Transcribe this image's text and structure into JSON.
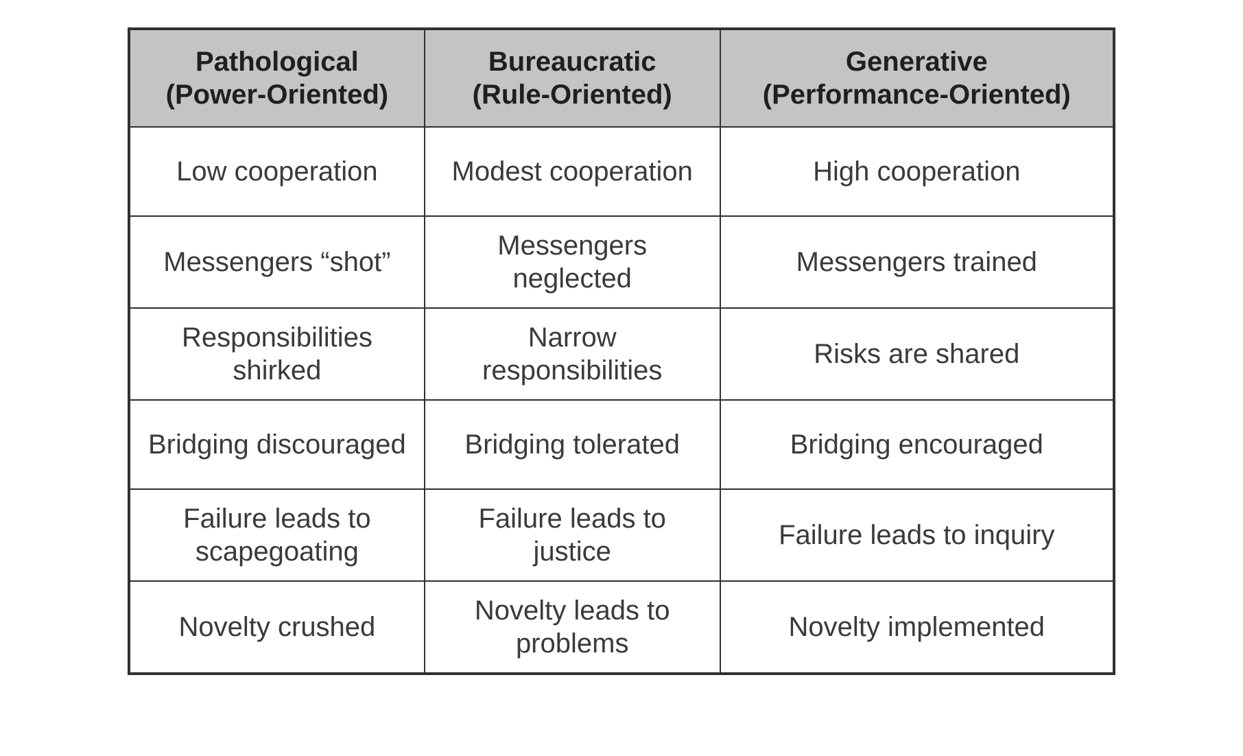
{
  "table": {
    "type": "table",
    "background_color": "#ffffff",
    "header_bg": "#c4c4c4",
    "border_color": "#2e3131",
    "text_color": "#3a3a3a",
    "header_fontsize_pt": 30,
    "body_fontsize_pt": 30,
    "body_font_weight": 300,
    "header_font_weight": 700,
    "column_widths_pct": [
      30,
      30,
      40
    ],
    "columns": [
      {
        "title": "Pathological",
        "subtitle": "(Power-Oriented)"
      },
      {
        "title": "Bureaucratic",
        "subtitle": "(Rule-Oriented)"
      },
      {
        "title": "Generative",
        "subtitle": "(Performance-Oriented)"
      }
    ],
    "rows": [
      [
        "Low cooperation",
        "Modest cooperation",
        "High cooperation"
      ],
      [
        "Messengers “shot”",
        "Messengers neglected",
        "Messengers trained"
      ],
      [
        "Responsibilities shirked",
        "Narrow responsibilities",
        "Risks are shared"
      ],
      [
        "Bridging discouraged",
        "Bridging tolerated",
        "Bridging encouraged"
      ],
      [
        "Failure leads to scapegoating",
        "Failure leads to justice",
        "Failure leads to inquiry"
      ],
      [
        "Novelty crushed",
        "Novelty leads to problems",
        "Novelty implemented"
      ]
    ]
  }
}
